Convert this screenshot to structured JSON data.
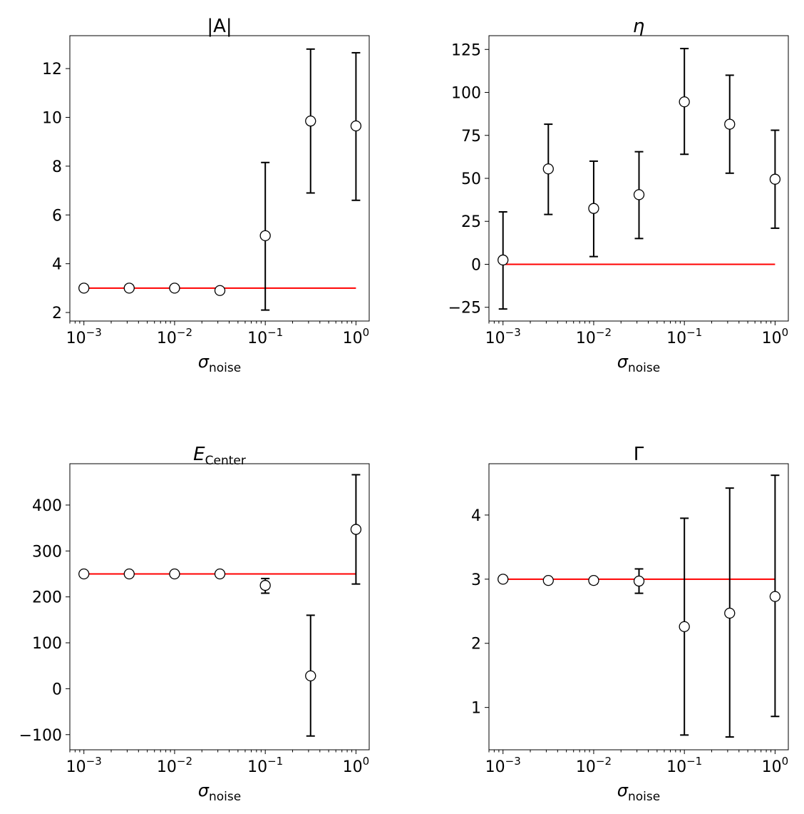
{
  "chart_data": [
    {
      "type": "scatter",
      "title": "|A|",
      "xlabel": {
        "main": "σ",
        "sub": "noise"
      },
      "xscale": "log",
      "xlim": [
        0.0007,
        1.4
      ],
      "ylim": [
        1.65,
        13.35
      ],
      "xticks": [
        {
          "base": "10",
          "exp": "−3"
        },
        {
          "base": "10",
          "exp": "−2"
        },
        {
          "base": "10",
          "exp": "−1"
        },
        {
          "base": "10",
          "exp": "0"
        }
      ],
      "yticks": [
        {
          "value": 2,
          "label": "2"
        },
        {
          "value": 4,
          "label": "4"
        },
        {
          "value": 6,
          "label": "6"
        },
        {
          "value": 8,
          "label": "8"
        },
        {
          "value": 10,
          "label": "10"
        },
        {
          "value": 12,
          "label": "12"
        }
      ],
      "reference": 3,
      "x": [
        0.001,
        0.00316,
        0.01,
        0.0316,
        0.1,
        0.316,
        1
      ],
      "y": [
        3.0,
        3.0,
        3.0,
        2.9,
        5.15,
        9.85,
        9.65
      ],
      "yerr_low": [
        3.0,
        3.0,
        3.0,
        2.9,
        2.1,
        6.9,
        6.6
      ],
      "yerr_high": [
        3.0,
        3.0,
        3.0,
        2.9,
        8.15,
        12.8,
        12.65
      ],
      "grid": false
    },
    {
      "type": "scatter",
      "title": "η",
      "xlabel": {
        "main": "σ",
        "sub": "noise"
      },
      "xscale": "log",
      "xlim": [
        0.0007,
        1.4
      ],
      "ylim": [
        -33,
        133
      ],
      "xticks": [
        {
          "base": "10",
          "exp": "−3"
        },
        {
          "base": "10",
          "exp": "−2"
        },
        {
          "base": "10",
          "exp": "−1"
        },
        {
          "base": "10",
          "exp": "0"
        }
      ],
      "yticks": [
        {
          "value": -25,
          "label": "−25"
        },
        {
          "value": 0,
          "label": "0"
        },
        {
          "value": 25,
          "label": "25"
        },
        {
          "value": 50,
          "label": "50"
        },
        {
          "value": 75,
          "label": "75"
        },
        {
          "value": 100,
          "label": "100"
        },
        {
          "value": 125,
          "label": "125"
        }
      ],
      "reference": 0,
      "x": [
        0.001,
        0.00316,
        0.01,
        0.0316,
        0.1,
        0.316,
        1
      ],
      "y": [
        2.5,
        55.5,
        32.5,
        40.5,
        94.5,
        81.5,
        49.5
      ],
      "yerr_low": [
        -26,
        29,
        4.5,
        15,
        64,
        53,
        21
      ],
      "yerr_high": [
        30.5,
        81.5,
        60,
        65.5,
        125.5,
        110,
        78
      ],
      "grid": false
    },
    {
      "type": "scatter",
      "title": {
        "main": "E",
        "sub": "Center"
      },
      "xlabel": {
        "main": "σ",
        "sub": "noise"
      },
      "xscale": "log",
      "xlim": [
        0.0007,
        1.4
      ],
      "ylim": [
        -133,
        490
      ],
      "xticks": [
        {
          "base": "10",
          "exp": "−3"
        },
        {
          "base": "10",
          "exp": "−2"
        },
        {
          "base": "10",
          "exp": "−1"
        },
        {
          "base": "10",
          "exp": "0"
        }
      ],
      "yticks": [
        {
          "value": -100,
          "label": "−100"
        },
        {
          "value": 0,
          "label": "0"
        },
        {
          "value": 100,
          "label": "100"
        },
        {
          "value": 200,
          "label": "200"
        },
        {
          "value": 300,
          "label": "300"
        },
        {
          "value": 400,
          "label": "400"
        }
      ],
      "reference": 250,
      "x": [
        0.001,
        0.00316,
        0.01,
        0.0316,
        0.1,
        0.316,
        1
      ],
      "y": [
        250,
        250,
        250,
        250,
        225,
        28,
        347
      ],
      "yerr_low": [
        250,
        250,
        250,
        250,
        208,
        -103,
        228
      ],
      "yerr_high": [
        250,
        250,
        250,
        250,
        240,
        160,
        466
      ],
      "grid": false
    },
    {
      "type": "scatter",
      "title": "Γ",
      "xlabel": {
        "main": "σ",
        "sub": "noise"
      },
      "xscale": "log",
      "xlim": [
        0.0007,
        1.4
      ],
      "ylim": [
        0.34,
        4.8
      ],
      "xticks": [
        {
          "base": "10",
          "exp": "−3"
        },
        {
          "base": "10",
          "exp": "−2"
        },
        {
          "base": "10",
          "exp": "−1"
        },
        {
          "base": "10",
          "exp": "0"
        }
      ],
      "yticks": [
        {
          "value": 1,
          "label": "1"
        },
        {
          "value": 2,
          "label": "2"
        },
        {
          "value": 3,
          "label": "3"
        },
        {
          "value": 4,
          "label": "4"
        }
      ],
      "reference": 3,
      "x": [
        0.001,
        0.00316,
        0.01,
        0.0316,
        0.1,
        0.316,
        1
      ],
      "y": [
        3.0,
        2.98,
        2.98,
        2.97,
        2.26,
        2.47,
        2.73
      ],
      "yerr_low": [
        3.0,
        2.98,
        2.93,
        2.78,
        0.57,
        0.54,
        0.86
      ],
      "yerr_high": [
        3.0,
        2.98,
        3.02,
        3.16,
        3.95,
        4.42,
        4.62
      ],
      "grid": false
    }
  ],
  "colors": {
    "reference_line": "#ff0000",
    "marker_face": "#ffffff",
    "marker_edge": "#000000",
    "errorbar": "#000000"
  }
}
